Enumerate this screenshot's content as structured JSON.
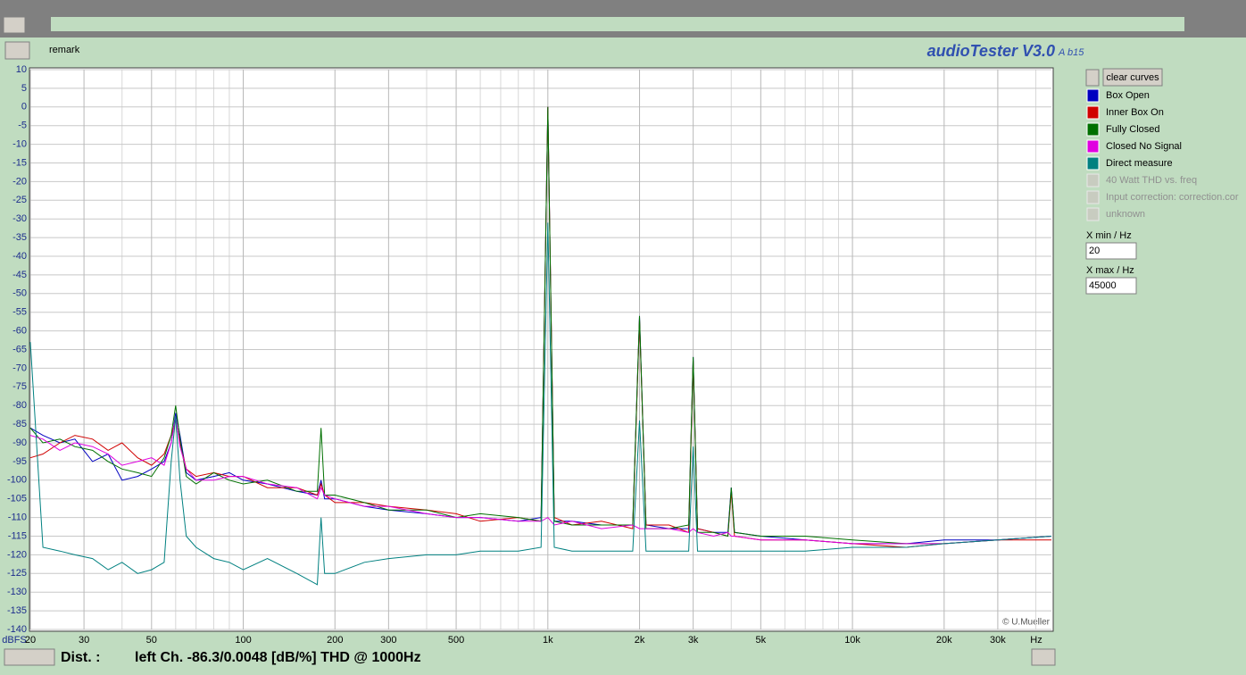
{
  "chart_data": {
    "type": "line",
    "x": [
      20,
      22,
      25,
      28,
      32,
      36,
      40,
      45,
      50,
      55,
      58,
      60,
      62,
      65,
      70,
      80,
      90,
      100,
      120,
      150,
      175,
      180,
      185,
      200,
      250,
      300,
      400,
      500,
      600,
      800,
      950,
      1000,
      1050,
      1200,
      1500,
      1900,
      2000,
      2100,
      2500,
      2900,
      3000,
      3100,
      3500,
      3900,
      4000,
      4100,
      5000,
      7000,
      10000,
      15000,
      20000,
      30000,
      45000
    ],
    "series": [
      {
        "name": "Box Open",
        "color": "#0000c0",
        "values": [
          -86,
          -88,
          -90,
          -89,
          -95,
          -93,
          -100,
          -99,
          -97,
          -95,
          -90,
          -82,
          -88,
          -98,
          -100,
          -99,
          -98,
          -100,
          -101,
          -103,
          -104,
          -100,
          -105,
          -105,
          -107,
          -108,
          -109,
          -110,
          -110,
          -111,
          -110,
          0,
          -111,
          -111,
          -112,
          -112,
          -56,
          -112,
          -113,
          -113,
          -67,
          -113,
          -114,
          -114,
          -102,
          -114,
          -115,
          -116,
          -117,
          -117,
          -116,
          -116,
          -115
        ]
      },
      {
        "name": "Inner Box On",
        "color": "#d00000",
        "values": [
          -94,
          -93,
          -90,
          -88,
          -89,
          -92,
          -90,
          -94,
          -96,
          -93,
          -88,
          -84,
          -90,
          -97,
          -99,
          -98,
          -99,
          -99,
          -102,
          -102,
          -104,
          -101,
          -104,
          -106,
          -106,
          -107,
          -108,
          -109,
          -111,
          -110,
          -111,
          0,
          -110,
          -112,
          -111,
          -113,
          -57,
          -112,
          -112,
          -114,
          -68,
          -113,
          -114,
          -115,
          -103,
          -115,
          -116,
          -116,
          -117,
          -118,
          -117,
          -116,
          -116
        ]
      },
      {
        "name": "Fully Closed",
        "color": "#007000",
        "values": [
          -86,
          -90,
          -89,
          -91,
          -92,
          -95,
          -97,
          -98,
          -99,
          -94,
          -88,
          -80,
          -89,
          -99,
          -101,
          -98,
          -100,
          -101,
          -100,
          -103,
          -103,
          -86,
          -104,
          -104,
          -106,
          -108,
          -108,
          -110,
          -109,
          -110,
          -111,
          0,
          -111,
          -112,
          -112,
          -112,
          -56,
          -113,
          -113,
          -112,
          -67,
          -114,
          -114,
          -115,
          -102,
          -114,
          -115,
          -115,
          -116,
          -117,
          -117,
          -116,
          -115
        ]
      },
      {
        "name": "Closed No Signal",
        "color": "#e000e0",
        "values": [
          -88,
          -89,
          -92,
          -90,
          -91,
          -93,
          -96,
          -95,
          -94,
          -96,
          -90,
          -83,
          -91,
          -97,
          -100,
          -100,
          -99,
          -99,
          -101,
          -102,
          -105,
          -102,
          -104,
          -105,
          -107,
          -107,
          -109,
          -110,
          -110,
          -111,
          -111,
          -110,
          -112,
          -111,
          -113,
          -112,
          -113,
          -113,
          -113,
          -114,
          -113,
          -114,
          -115,
          -114,
          -115,
          -115,
          -116,
          -116,
          -117,
          -117,
          -117,
          -116,
          -115
        ]
      },
      {
        "name": "Direct measure",
        "color": "#008080",
        "values": [
          -63,
          -118,
          -119,
          -120,
          -121,
          -124,
          -122,
          -125,
          -124,
          -122,
          -95,
          -83,
          -100,
          -115,
          -118,
          -121,
          -122,
          -124,
          -121,
          -125,
          -128,
          -110,
          -125,
          -125,
          -122,
          -121,
          -120,
          -120,
          -119,
          -119,
          -118,
          -31,
          -118,
          -119,
          -119,
          -119,
          -84,
          -119,
          -119,
          -119,
          -91,
          -119,
          -119,
          -119,
          -119,
          -119,
          -119,
          -119,
          -118,
          -118,
          -117,
          -116,
          -115
        ]
      }
    ],
    "xlim": [
      20,
      45000
    ],
    "ylim": [
      -140,
      10
    ],
    "log_x": true,
    "grid": true,
    "xticks": [
      20,
      30,
      50,
      100,
      200,
      300,
      500,
      {
        "value": 1000,
        "label": "1k"
      },
      {
        "value": 2000,
        "label": "2k"
      },
      {
        "value": 3000,
        "label": "3k"
      },
      {
        "value": 5000,
        "label": "5k"
      },
      {
        "value": 10000,
        "label": "10k"
      },
      {
        "value": 20000,
        "label": "20k"
      },
      {
        "value": 30000,
        "label": "30k"
      }
    ],
    "xgrid_minor": [
      40,
      60,
      70,
      80,
      90,
      400,
      600,
      700,
      800,
      900,
      4000,
      6000,
      7000,
      8000,
      9000,
      40000
    ],
    "yticks": [
      10,
      5,
      0,
      -5,
      -10,
      -15,
      -20,
      -25,
      -30,
      -35,
      -40,
      -45,
      -50,
      -55,
      -60,
      -65,
      -70,
      -75,
      -80,
      -85,
      -90,
      -95,
      -100,
      -105,
      -110,
      -115,
      -120,
      -125,
      -130,
      -135,
      -140
    ],
    "ylabel": "dBFS",
    "xlabel": "Hz",
    "credit": "© U.Mueller"
  },
  "ui": {
    "remark": "remark",
    "app_title": "audioTester V3.0",
    "app_version": "A b15",
    "clear_button": "clear curves",
    "disabled_items": [
      "40 Watt THD vs. freq",
      "Input correction: correction.cor",
      "unknown"
    ],
    "xmin_label": "X min / Hz",
    "xmin_value": "20",
    "xmax_label": "X max / Hz",
    "xmax_value": "45000",
    "dist_label": "Dist. :",
    "dist_text": "left Ch. -86.3/0.0048 [dB/%] THD @ 1000Hz"
  }
}
